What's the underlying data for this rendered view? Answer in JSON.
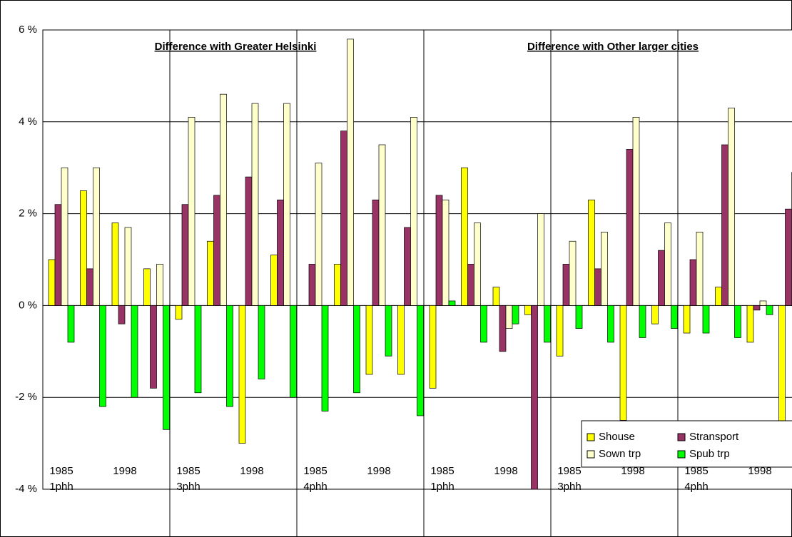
{
  "chart_data": {
    "type": "bar",
    "annotations": [
      "Difference with Greater Helsinki",
      "Difference with Other larger cities"
    ],
    "categories": [
      "1985",
      null,
      "1998",
      null,
      "1985",
      null,
      "1998",
      null,
      "1985",
      null,
      "1998",
      null,
      "1985",
      null,
      "1998",
      null,
      "1985",
      null,
      "1998",
      null,
      "1985",
      null,
      "1998",
      null
    ],
    "groups": [
      "1phh",
      "3phh",
      "4phh",
      "1phh",
      "3phh",
      "4phh"
    ],
    "series": [
      {
        "name": "Shouse",
        "color": "#ffff00",
        "values": [
          1.0,
          2.5,
          1.8,
          0.8,
          -0.3,
          1.4,
          -3.0,
          1.1,
          0,
          0.9,
          -1.5,
          -1.5,
          -1.8,
          3.0,
          0.4,
          -0.2,
          -1.1,
          2.3,
          -2.5,
          -0.4,
          -0.6,
          0.4,
          -0.8,
          -2.6
        ]
      },
      {
        "name": "Stransport",
        "color": "#993366",
        "values": [
          2.2,
          0.8,
          -0.4,
          -1.8,
          2.2,
          2.4,
          2.8,
          2.3,
          0.9,
          3.8,
          2.3,
          1.7,
          2.4,
          0.9,
          -1.0,
          -4.0,
          0.9,
          0.8,
          3.4,
          1.2,
          1.0,
          3.5,
          -0.1,
          2.1
        ]
      },
      {
        "name": "Sown trp",
        "color": "#ffffcc",
        "values": [
          3.0,
          3.0,
          1.7,
          0.9,
          4.1,
          4.6,
          4.4,
          4.4,
          3.1,
          5.8,
          3.5,
          4.1,
          2.3,
          1.8,
          -0.5,
          2.0,
          1.4,
          1.6,
          4.1,
          1.8,
          1.6,
          4.3,
          0.1,
          2.9
        ]
      },
      {
        "name": "Spub trp",
        "color": "#00ff00",
        "values": [
          -0.8,
          -2.2,
          -2.0,
          -2.7,
          -1.9,
          -2.2,
          -1.6,
          -2.0,
          -2.3,
          -1.9,
          -1.1,
          -2.4,
          0.1,
          -0.8,
          -0.4,
          -0.8,
          -0.5,
          -0.8,
          -0.7,
          -0.5,
          -0.6,
          -0.7,
          -0.2,
          -0.8
        ]
      }
    ],
    "ylim": [
      -4,
      6
    ],
    "yticks": [
      {
        "value": -4,
        "label": "-4 %"
      },
      {
        "value": -2,
        "label": "-2 %"
      },
      {
        "value": 0,
        "label": "0 %"
      },
      {
        "value": 2,
        "label": "2 %"
      },
      {
        "value": 4,
        "label": "4 %"
      },
      {
        "value": 6,
        "label": "6 %"
      }
    ],
    "grid": true
  }
}
